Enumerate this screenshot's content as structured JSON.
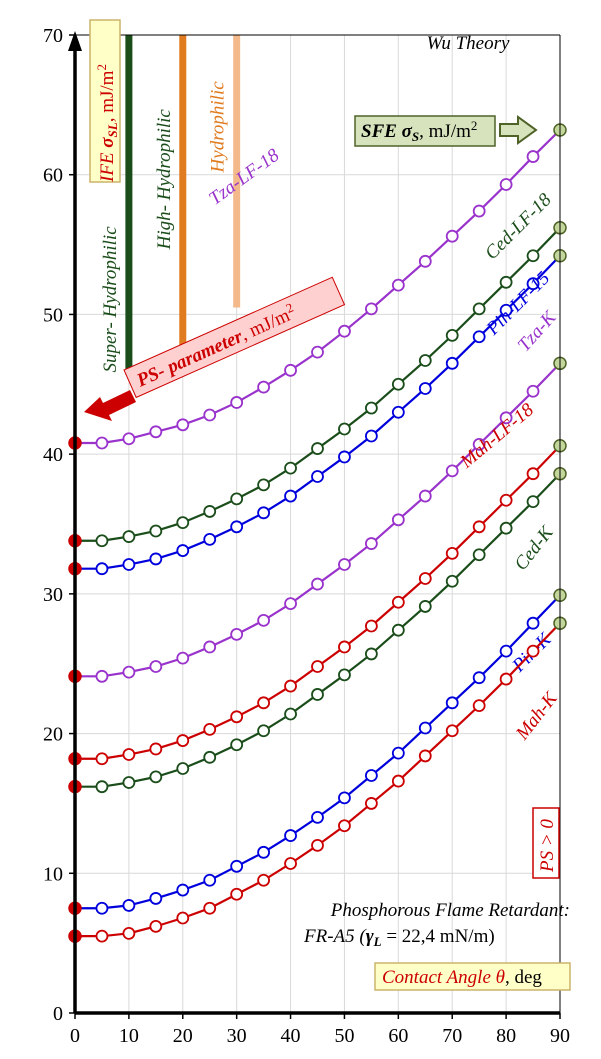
{
  "chart_data": {
    "type": "line",
    "title": "Wu Theory",
    "xlabel": "Contact Angle θ, deg",
    "xlabel_parts": {
      "name": "Contact Angle ",
      "symbol": "θ",
      "unit": ", deg"
    },
    "ylabel": "IFE σSL, mJ/m2",
    "ylabel_parts": {
      "name": "IFE ",
      "symbol": "σ",
      "sub": "SL",
      "unit": ", mJ/m",
      "sup": "2"
    },
    "xlim": [
      0,
      90
    ],
    "ylim": [
      0,
      70
    ],
    "xticks": [
      0,
      10,
      20,
      30,
      40,
      50,
      60,
      70,
      80,
      90
    ],
    "yticks": [
      0,
      10,
      20,
      30,
      40,
      50,
      60,
      70
    ],
    "grid": true,
    "x": [
      0,
      5,
      10,
      15,
      20,
      25,
      30,
      35,
      40,
      45,
      50,
      55,
      60,
      65,
      70,
      75,
      80,
      85,
      90
    ],
    "series": [
      {
        "name": "Tza-LF-18",
        "color": "#9933cc",
        "label_pos": [
          32,
          59.5
        ],
        "label_rot": -36,
        "values": [
          40.8,
          40.8,
          41.1,
          41.6,
          42.1,
          42.8,
          43.7,
          44.8,
          46.0,
          47.3,
          48.8,
          50.4,
          52.1,
          53.8,
          55.6,
          57.4,
          59.3,
          61.3,
          63.2
        ]
      },
      {
        "name": "Ced-LF-18",
        "color": "#1a4d1a",
        "label_pos": [
          83,
          56
        ],
        "label_rot": -45,
        "values": [
          33.8,
          33.8,
          34.1,
          34.5,
          35.1,
          35.9,
          36.8,
          37.8,
          39.0,
          40.4,
          41.8,
          43.3,
          45.0,
          46.7,
          48.5,
          50.4,
          52.3,
          54.2,
          56.2
        ]
      },
      {
        "name": "Pin-LF-15",
        "color": "#0000dd",
        "label_pos": [
          83,
          50.5
        ],
        "label_rot": -45,
        "values": [
          31.8,
          31.8,
          32.1,
          32.5,
          33.1,
          33.9,
          34.8,
          35.8,
          37.0,
          38.4,
          39.8,
          41.3,
          43.0,
          44.7,
          46.5,
          48.4,
          50.3,
          52.2,
          54.2
        ]
      },
      {
        "name": "Tza-K",
        "color": "#9933cc",
        "label_pos": [
          86.5,
          48.5
        ],
        "label_rot": -48,
        "values": [
          24.1,
          24.1,
          24.4,
          24.8,
          25.4,
          26.2,
          27.1,
          28.1,
          29.3,
          30.7,
          32.1,
          33.6,
          35.3,
          37.0,
          38.8,
          40.7,
          42.6,
          44.5,
          46.5
        ]
      },
      {
        "name": "Mah-LF-18",
        "color": "#cc0000",
        "label_pos": [
          79,
          41
        ],
        "label_rot": -40,
        "values": [
          18.2,
          18.2,
          18.5,
          18.9,
          19.5,
          20.3,
          21.2,
          22.2,
          23.4,
          24.8,
          26.2,
          27.7,
          29.4,
          31.1,
          32.9,
          34.8,
          36.7,
          38.6,
          40.6
        ]
      },
      {
        "name": "Ced-K",
        "color": "#1a4d1a",
        "label_pos": [
          86,
          33
        ],
        "label_rot": -52,
        "values": [
          16.2,
          16.2,
          16.5,
          16.9,
          17.5,
          18.3,
          19.2,
          20.2,
          21.4,
          22.8,
          24.2,
          25.7,
          27.4,
          29.1,
          30.9,
          32.8,
          34.7,
          36.6,
          38.6
        ]
      },
      {
        "name": "Pin-K",
        "color": "#0000dd",
        "label_pos": [
          85.5,
          25.5
        ],
        "label_rot": -45,
        "values": [
          7.5,
          7.5,
          7.7,
          8.2,
          8.8,
          9.5,
          10.5,
          11.5,
          12.7,
          14.0,
          15.4,
          17.0,
          18.6,
          20.4,
          22.2,
          24.0,
          25.9,
          27.9,
          29.9
        ]
      },
      {
        "name": "Mah-K",
        "color": "#cc0000",
        "label_pos": [
          86.5,
          21
        ],
        "label_rot": -52,
        "values": [
          5.5,
          5.5,
          5.7,
          6.2,
          6.8,
          7.5,
          8.5,
          9.5,
          10.7,
          12.0,
          13.4,
          15.0,
          16.6,
          18.4,
          20.2,
          22.0,
          23.9,
          25.9,
          27.9
        ]
      }
    ],
    "annotations": {
      "sfe": {
        "name": "SFE ",
        "symbol": "σ",
        "sub": "S",
        "unit": ", mJ/m",
        "sup": "2"
      },
      "ps_parameter": {
        "bold": "PS- parameter",
        "unit": ", mJ/m",
        "sup": "2"
      },
      "ps_positive": "PS > 0",
      "retardant_line1": "Phosphorous Flame Retardant:",
      "retardant_line2": "FR-A5 (",
      "retardant_symbol": "γ",
      "retardant_sub": "L",
      "retardant_value": " = 22,4 mN/m)"
    },
    "wetting_bars": [
      {
        "label": "Super- Hydrophilic",
        "x": 10,
        "y_from": 45.7,
        "y_to": 70,
        "color": "#1a4d1a",
        "label_color": "#1a4d1a"
      },
      {
        "label": "High- Hydrophilic",
        "x": 20,
        "y_from": 47.5,
        "y_to": 70,
        "color": "#e07b20",
        "label_color": "#1a4d1a"
      },
      {
        "label": "Hydrophilic",
        "x": 30,
        "y_from": 50.5,
        "y_to": 70,
        "color": "#f4b98a",
        "label_color": "#e07b20"
      }
    ],
    "styles": {
      "axis": "#000000",
      "grid": "#d9d9d9",
      "marker_fill": "#ffffff",
      "endpoint_left": "#cc0000",
      "endpoint_right_fill": "#c3d69b",
      "endpoint_right_stroke": "#4f6228",
      "ylabel_box_fill": "#ffffc8",
      "ylabel_box_stroke": "#ccb36b",
      "xlabel_box_fill": "#ffffc8",
      "ylabel_text": "#cc0000",
      "sfe_box_fill": "#d6e3bc",
      "sfe_box_stroke": "#4f6228",
      "arrow_fill": "#cc0000",
      "ps_box_fill": "#ffd0d0",
      "ps_text": "#cc0000"
    }
  }
}
